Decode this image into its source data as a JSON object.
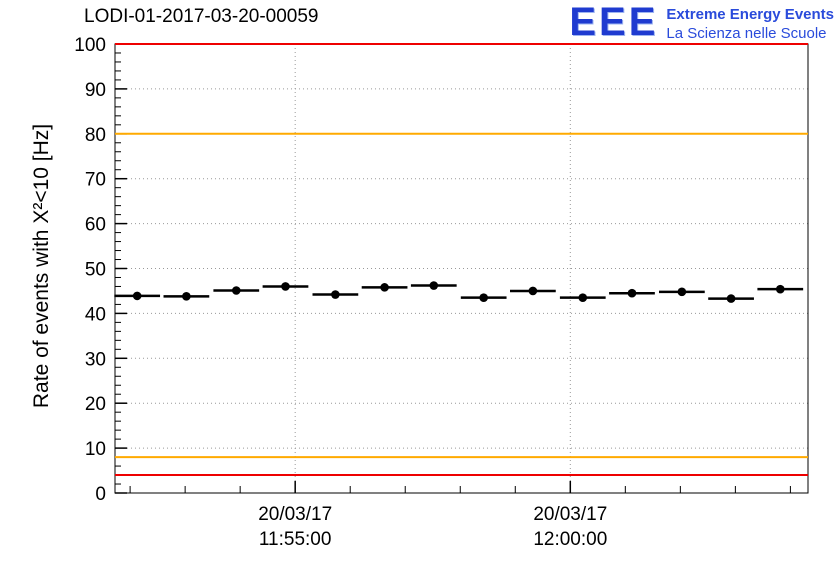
{
  "header": {
    "title": "LODI-01-2017-03-20-00059",
    "logo": {
      "text": "EEE",
      "line1": "Extreme Energy Events",
      "line2": "La Scienza nelle Scuole"
    }
  },
  "chart_data": {
    "type": "scatter",
    "title": "LODI-01-2017-03-20-00059",
    "xlabel": "",
    "ylabel": "Rate of events with X²<10 [Hz]",
    "ylim": [
      0,
      100
    ],
    "yticks": [
      0,
      10,
      20,
      30,
      40,
      50,
      60,
      70,
      80,
      90,
      100
    ],
    "grid": true,
    "colors": {
      "grid": "#999999",
      "red_line": "#ee0000",
      "orange_line": "#ffaa00",
      "marker": "#000000",
      "logo_blue": "#1f3bd0"
    },
    "x_ticks": [
      {
        "f": 0.26,
        "lines": [
          "20/03/17",
          "11:55:00"
        ]
      },
      {
        "f": 0.657,
        "lines": [
          "20/03/17",
          "12:00:00"
        ]
      }
    ],
    "reference_lines": [
      {
        "y": 100,
        "color": "#ee0000"
      },
      {
        "y": 80,
        "color": "#ffaa00"
      },
      {
        "y": 8,
        "color": "#ffaa00"
      },
      {
        "y": 4,
        "color": "#ee0000"
      }
    ],
    "series": [
      {
        "name": "rate",
        "marker": "circle",
        "color": "#000000",
        "points": [
          {
            "t": 0.032,
            "rate": 43.9,
            "xerr": 0.033
          },
          {
            "t": 0.103,
            "rate": 43.8,
            "xerr": 0.033
          },
          {
            "t": 0.175,
            "rate": 45.1,
            "xerr": 0.033
          },
          {
            "t": 0.246,
            "rate": 46.0,
            "xerr": 0.033
          },
          {
            "t": 0.318,
            "rate": 44.2,
            "xerr": 0.033
          },
          {
            "t": 0.389,
            "rate": 45.8,
            "xerr": 0.033
          },
          {
            "t": 0.46,
            "rate": 46.2,
            "xerr": 0.033
          },
          {
            "t": 0.532,
            "rate": 43.5,
            "xerr": 0.033
          },
          {
            "t": 0.603,
            "rate": 45.0,
            "xerr": 0.033
          },
          {
            "t": 0.675,
            "rate": 43.5,
            "xerr": 0.033
          },
          {
            "t": 0.746,
            "rate": 44.5,
            "xerr": 0.033
          },
          {
            "t": 0.818,
            "rate": 44.8,
            "xerr": 0.033
          },
          {
            "t": 0.889,
            "rate": 43.3,
            "xerr": 0.033
          },
          {
            "t": 0.96,
            "rate": 45.4,
            "xerr": 0.033
          }
        ]
      }
    ]
  }
}
